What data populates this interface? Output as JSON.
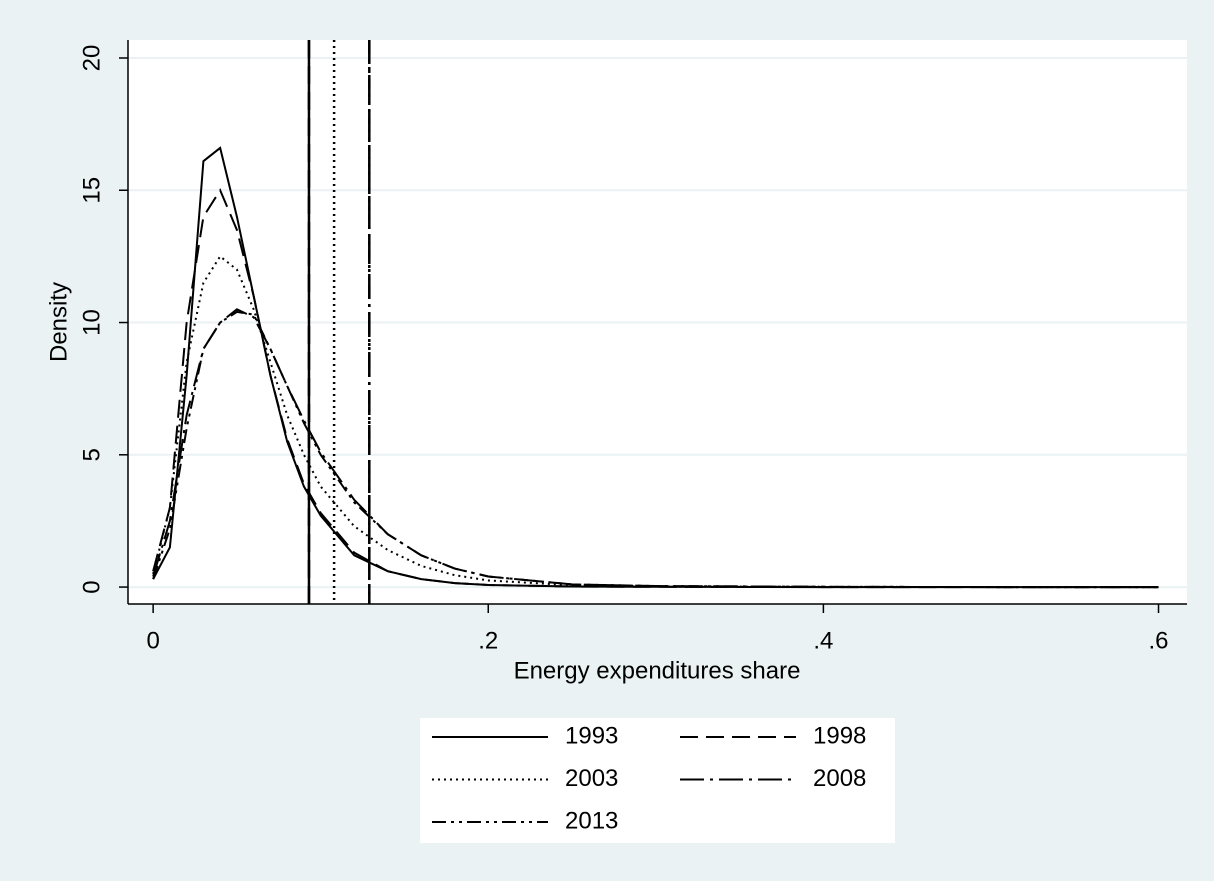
{
  "chart_data": {
    "type": "line",
    "xlabel": "Energy expenditures share",
    "ylabel": "Density",
    "x": [
      0,
      0.01,
      0.02,
      0.03,
      0.04,
      0.05,
      0.06,
      0.07,
      0.08,
      0.09,
      0.1,
      0.12,
      0.14,
      0.16,
      0.18,
      0.2,
      0.25,
      0.3,
      0.4,
      0.5,
      0.6
    ],
    "series": [
      {
        "name": "1993",
        "color": "#000000",
        "dash": "solid",
        "xline": 0.093,
        "values": [
          0.3,
          1.5,
          8,
          16.1,
          16.6,
          14,
          11,
          8,
          5.5,
          3.8,
          2.7,
          1.2,
          0.6,
          0.3,
          0.15,
          0.08,
          0.02,
          0.01,
          0,
          0,
          0
        ]
      },
      {
        "name": "1998",
        "color": "#000000",
        "dash": "dash",
        "xline": 0.093,
        "values": [
          0.6,
          3,
          10,
          14,
          15,
          13.5,
          11,
          8,
          5.6,
          3.9,
          2.8,
          1.3,
          0.6,
          0.3,
          0.15,
          0.08,
          0.02,
          0.01,
          0,
          0,
          0
        ]
      },
      {
        "name": "2003",
        "color": "#000000",
        "dash": "dot",
        "xline": 0.108,
        "values": [
          0.5,
          3,
          8.5,
          11.5,
          12.5,
          12,
          10.5,
          8.5,
          6.5,
          5,
          3.8,
          2.3,
          1.4,
          0.8,
          0.45,
          0.25,
          0.07,
          0.02,
          0.01,
          0,
          0
        ]
      },
      {
        "name": "2008",
        "color": "#000000",
        "dash": "longdash-dot",
        "xline": 0.129,
        "values": [
          0.4,
          2.5,
          6.5,
          9,
          10,
          10.5,
          10.2,
          9,
          7.6,
          6.3,
          5.1,
          3.3,
          2,
          1.2,
          0.7,
          0.4,
          0.1,
          0.04,
          0.01,
          0,
          0
        ]
      },
      {
        "name": "2013",
        "color": "#000000",
        "dash": "dash-dot-dot",
        "xline": 0.129,
        "values": [
          0.3,
          2.2,
          6,
          9,
          10,
          10.4,
          10.3,
          9,
          7.6,
          6.2,
          5,
          3.2,
          2,
          1.2,
          0.7,
          0.4,
          0.1,
          0.04,
          0.01,
          0,
          0
        ]
      }
    ],
    "xlim": [
      -0.015,
      0.617
    ],
    "ylim": [
      -0.64,
      20.68
    ],
    "xticks": [
      0,
      {
        "value": 0.2,
        "label": ".2"
      },
      {
        "value": 0.4,
        "label": ".4"
      },
      {
        "value": 0.6,
        "label": ".6"
      }
    ],
    "yticks": [
      0,
      5,
      10,
      15,
      20
    ],
    "grid": true,
    "legend": "bottom"
  }
}
